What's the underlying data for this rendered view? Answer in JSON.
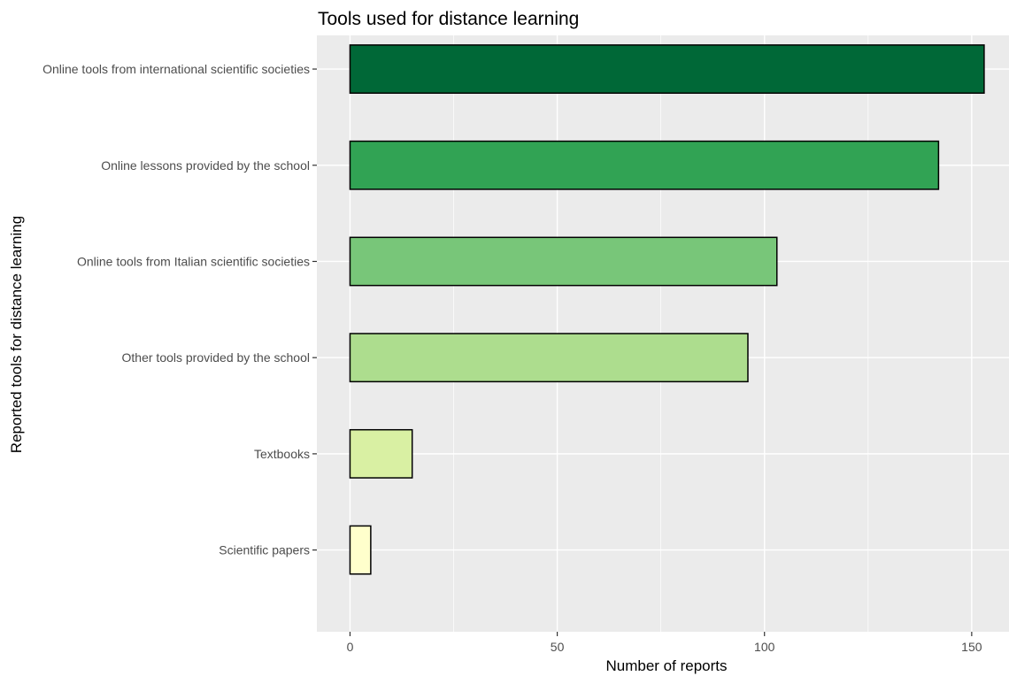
{
  "chart_data": {
    "type": "bar",
    "orientation": "horizontal",
    "title": "Tools used for distance learning",
    "xlabel": "Number of reports",
    "ylabel": "Reported tools for distance learning",
    "categories": [
      "Online tools from international scientific societies",
      "Online lessons provided by the school",
      "Online tools from Italian scientific societies",
      "Other tools provided by the school",
      "Textbooks",
      "Scientific papers"
    ],
    "values": [
      153,
      142,
      103,
      96,
      15,
      5
    ],
    "colors": [
      "#006837",
      "#31a354",
      "#78c679",
      "#addd8e",
      "#d9f0a3",
      "#ffffcc"
    ],
    "xlim": [
      -8,
      159
    ],
    "xticks": [
      0,
      50,
      100,
      150
    ],
    "xtick_labels": [
      "0",
      "50",
      "100",
      "150"
    ],
    "grid": true,
    "panel_background": "#ebebeb",
    "bar_outline": "#000000"
  }
}
